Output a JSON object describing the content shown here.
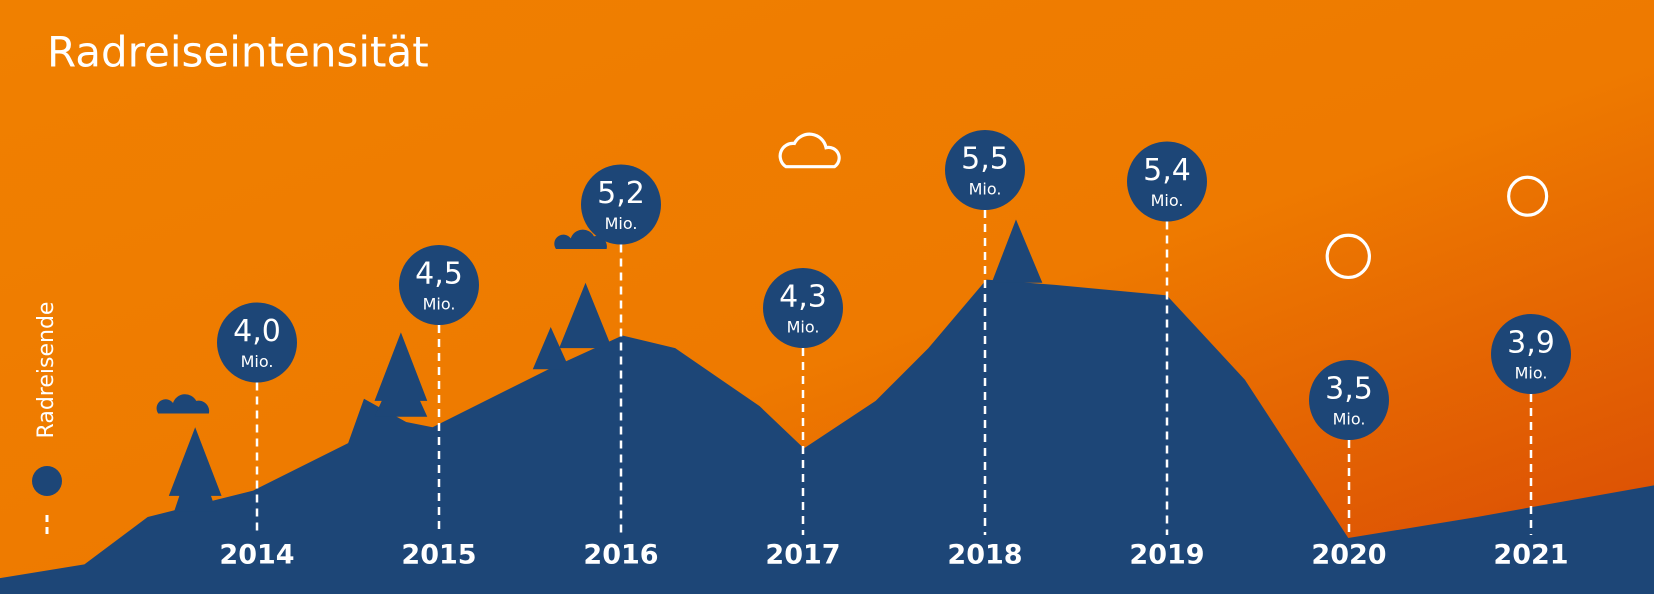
{
  "chart_data": {
    "type": "bubble-line",
    "title": "Radreiseintensität",
    "y_label": "Radreisende",
    "unit": "Mio.",
    "categories": [
      "2014",
      "2015",
      "2016",
      "2017",
      "2018",
      "2019",
      "2020",
      "2021"
    ],
    "values": [
      4.0,
      4.5,
      5.2,
      4.3,
      5.5,
      5.4,
      3.5,
      3.9
    ],
    "value_labels": [
      "4,0",
      "4,5",
      "5,2",
      "4,3",
      "5,5",
      "5,4",
      "3,5",
      "3,9"
    ],
    "color": "#1d4677"
  }
}
